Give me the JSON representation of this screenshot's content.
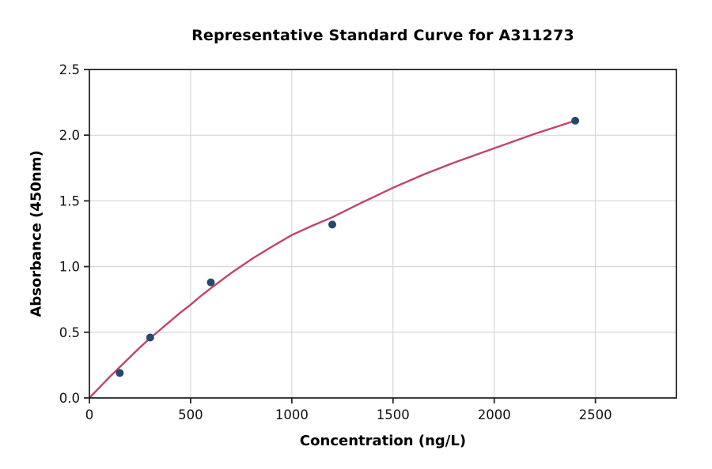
{
  "chart_data": {
    "type": "scatter",
    "title": "Representative Standard Curve for A311273",
    "xlabel": "Concentration (ng/L)",
    "ylabel": "Absorbance (450nm)",
    "xlim": [
      0,
      2900
    ],
    "ylim": [
      0,
      2.5
    ],
    "xticks": [
      0,
      500,
      1000,
      1500,
      2000,
      2500
    ],
    "xtick_labels": [
      "0",
      "500",
      "1000",
      "1500",
      "2000",
      "2500"
    ],
    "yticks": [
      0,
      0.5,
      1,
      1.5,
      2,
      2.5
    ],
    "ytick_labels": [
      "0.0",
      "0.5",
      "1.0",
      "1.5",
      "2.0",
      "2.5"
    ],
    "grid": true,
    "legend_position": "none",
    "series": [
      {
        "name": "fitted-standard-curve",
        "type": "line",
        "color": "#c2436b",
        "stroke_width": 2.4,
        "points": [
          [
            0,
            0.0
          ],
          [
            50,
            0.08
          ],
          [
            100,
            0.16
          ],
          [
            150,
            0.235
          ],
          [
            200,
            0.31
          ],
          [
            250,
            0.385
          ],
          [
            300,
            0.455
          ],
          [
            350,
            0.52
          ],
          [
            400,
            0.585
          ],
          [
            450,
            0.65
          ],
          [
            500,
            0.71
          ],
          [
            550,
            0.775
          ],
          [
            600,
            0.835
          ],
          [
            700,
            0.95
          ],
          [
            800,
            1.055
          ],
          [
            900,
            1.15
          ],
          [
            1000,
            1.24
          ],
          [
            1100,
            1.31
          ],
          [
            1200,
            1.375
          ],
          [
            1350,
            1.49
          ],
          [
            1500,
            1.6
          ],
          [
            1650,
            1.7
          ],
          [
            1800,
            1.79
          ],
          [
            2000,
            1.9
          ],
          [
            2200,
            2.01
          ],
          [
            2400,
            2.11
          ]
        ]
      },
      {
        "name": "standard-points",
        "type": "scatter",
        "color": "#27496e",
        "marker_radius": 5,
        "points": [
          [
            150,
            0.19
          ],
          [
            300,
            0.46
          ],
          [
            600,
            0.88
          ],
          [
            1200,
            1.32
          ],
          [
            2400,
            2.11
          ]
        ]
      }
    ],
    "colors": {
      "grid": "#cfcfcf",
      "spine": "#262626",
      "tick": "#262626",
      "text": "#000000",
      "background": "#ffffff"
    }
  }
}
